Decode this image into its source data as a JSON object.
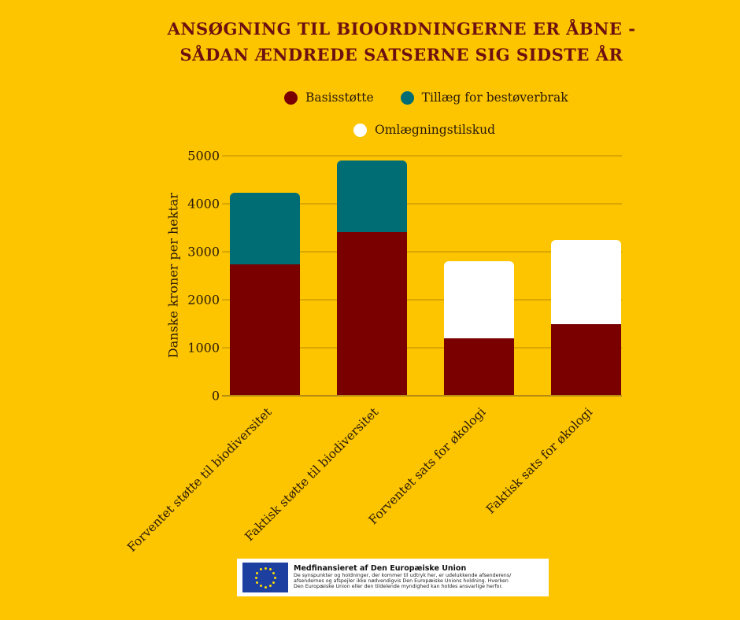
{
  "header": {
    "title_line1": "ANSØGNING TIL BIOORDNINGERNE ER ÅBNE -",
    "title_line2": "SÅDAN ÆNDREDE SATSERNE SIG SIDSTE ÅR"
  },
  "legend": [
    {
      "label": "Basisstøtte",
      "color": "#7a0000"
    },
    {
      "label": "Tillæg for bestøverbrak",
      "color": "#006d75"
    },
    {
      "label": "Omlægningstilskud",
      "color": "#ffffff"
    }
  ],
  "axis": {
    "ylabel": "Danske kroner per hektar",
    "ticks": [
      "0",
      "1000",
      "2000",
      "3000",
      "4000",
      "5000"
    ]
  },
  "chart_data": {
    "type": "bar",
    "stacked": true,
    "title": "ANSØGNING TIL BIOORDNINGERNE ER ÅBNE - SÅDAN ÆNDREDE SATSERNE SIG SIDSTE ÅR",
    "xlabel": "",
    "ylabel": "Danske kroner per hektar",
    "ylim": [
      0,
      5000
    ],
    "yticks": [
      0,
      1000,
      2000,
      3000,
      4000,
      5000
    ],
    "grid": true,
    "legend_position": "top",
    "categories": [
      "Forventet støtte til biodiversitet",
      "Faktisk støtte til biodiversitet",
      "Forventet sats for økologi",
      "Faktisk sats for økologi"
    ],
    "series": [
      {
        "name": "Basisstøtte",
        "color": "#7a0000",
        "values": [
          2740,
          3410,
          1200,
          1500
        ]
      },
      {
        "name": "Tillæg for bestøverbrak",
        "color": "#006d75",
        "values": [
          1490,
          1490,
          0,
          0
        ]
      },
      {
        "name": "Omlægningstilskud",
        "color": "#ffffff",
        "values": [
          0,
          0,
          1600,
          1750
        ]
      }
    ]
  },
  "footer": {
    "heading": "Medfinansieret af Den Europæiske Union",
    "line1": "De synspunkter og holdninger, der kommer til udtryk her, er udelukkende afsenderens/",
    "line2": "afsendernes og afspejler ikke nødvendigvis Den Europæiske Unions holdning. Hverken",
    "line3": "Den Europæiske Union eller den tildelende myndighed kan holdes ansvarlige herfor.",
    "flag_icon": "eu-flag-icon"
  }
}
